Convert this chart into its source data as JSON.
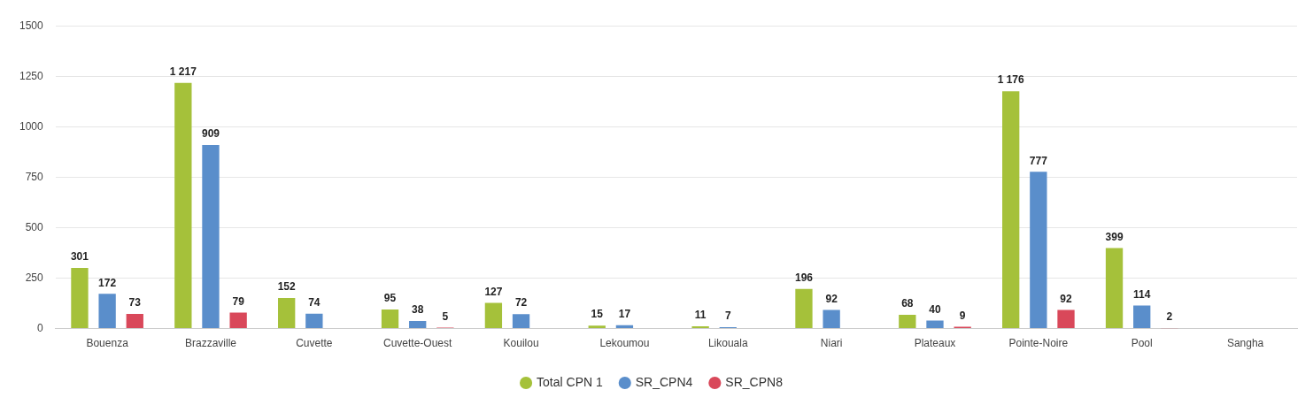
{
  "chart_data": {
    "type": "bar",
    "categories": [
      "Bouenza",
      "Brazzaville",
      "Cuvette",
      "Cuvette-Ouest",
      "Kouilou",
      "Lekoumou",
      "Likouala",
      "Niari",
      "Plateaux",
      "Pointe-Noire",
      "Pool",
      "Sangha"
    ],
    "series": [
      {
        "name": "Total CPN 1",
        "color": "#a5c13a",
        "values": [
          301,
          1217,
          152,
          95,
          127,
          15,
          11,
          196,
          68,
          1176,
          399,
          null
        ],
        "value_labels": [
          "301",
          "1 217",
          "152",
          "95",
          "127",
          "15",
          "11",
          "196",
          "68",
          "1 176",
          "399",
          null
        ]
      },
      {
        "name": "SR_CPN4",
        "color": "#5a8ecb",
        "values": [
          172,
          909,
          74,
          38,
          72,
          17,
          7,
          92,
          40,
          777,
          114,
          null
        ],
        "value_labels": [
          "172",
          "909",
          "74",
          "38",
          "72",
          "17",
          "7",
          "92",
          "40",
          "777",
          "114",
          null
        ]
      },
      {
        "name": "SR_CPN8",
        "color": "#d9485a",
        "values": [
          73,
          79,
          null,
          5,
          null,
          null,
          null,
          null,
          9,
          92,
          2,
          null
        ],
        "value_labels": [
          "73",
          "79",
          null,
          "5",
          null,
          null,
          null,
          null,
          "9",
          "92",
          "2",
          null
        ]
      }
    ],
    "ylim": [
      0,
      1500
    ],
    "yticks": [
      0,
      250,
      500,
      750,
      1000,
      1250,
      1500
    ],
    "grid": "y",
    "legend": "bottom"
  }
}
